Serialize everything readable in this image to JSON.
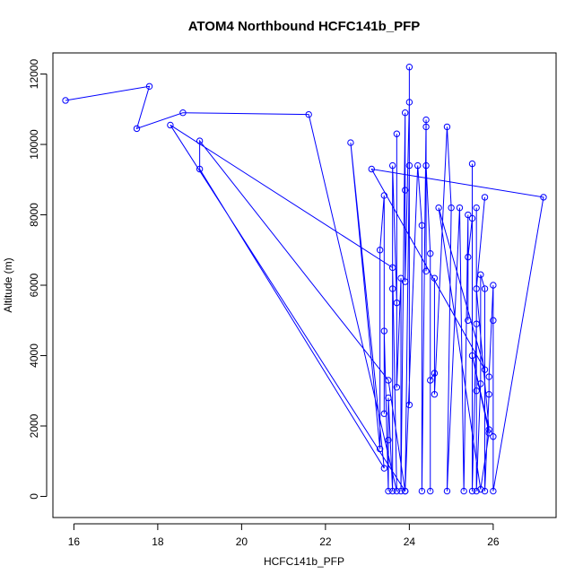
{
  "chart_data": {
    "type": "line",
    "title": "ATOM4 Northbound HCFC141b_PFP",
    "xlabel": "HCFC141b_PFP",
    "ylabel": "Altitude (m)",
    "xlim": [
      15.5,
      27.5
    ],
    "ylim": [
      -600,
      12600
    ],
    "x_ticks": [
      16,
      18,
      20,
      22,
      24,
      26
    ],
    "y_ticks": [
      0,
      2000,
      4000,
      6000,
      8000,
      10000,
      12000
    ],
    "grid": false,
    "marker": "open-circle",
    "series": [
      {
        "color": "#0000ff",
        "points": [
          [
            15.8,
            11250
          ],
          [
            17.8,
            11650
          ],
          [
            17.5,
            10450
          ],
          [
            18.6,
            10900
          ],
          [
            21.6,
            10850
          ],
          [
            23.7,
            150
          ],
          [
            23.6,
            6500
          ],
          [
            18.3,
            10550
          ],
          [
            23.9,
            150
          ],
          [
            23.5,
            3300
          ],
          [
            19.0,
            10100
          ],
          [
            19.0,
            9300
          ],
          [
            23.4,
            800
          ],
          [
            22.6,
            10050
          ],
          [
            23.3,
            1350
          ],
          [
            23.3,
            7000
          ],
          [
            23.4,
            8550
          ],
          [
            23.4,
            2350
          ],
          [
            23.4,
            4700
          ],
          [
            23.5,
            150
          ],
          [
            23.5,
            1600
          ],
          [
            23.5,
            2800
          ],
          [
            23.6,
            150
          ],
          [
            23.6,
            5900
          ],
          [
            23.6,
            9400
          ],
          [
            23.7,
            5500
          ],
          [
            23.7,
            10300
          ],
          [
            23.7,
            3100
          ],
          [
            23.8,
            6200
          ],
          [
            23.8,
            150
          ],
          [
            23.9,
            10900
          ],
          [
            23.9,
            8700
          ],
          [
            23.9,
            6100
          ],
          [
            24.0,
            11200
          ],
          [
            24.0,
            12200
          ],
          [
            24.0,
            2600
          ],
          [
            24.0,
            9400
          ],
          [
            23.9,
            150
          ],
          [
            24.2,
            9400
          ],
          [
            24.3,
            7700
          ],
          [
            24.3,
            150
          ],
          [
            24.4,
            10700
          ],
          [
            24.4,
            6400
          ],
          [
            24.4,
            10500
          ],
          [
            24.4,
            9400
          ],
          [
            24.5,
            6900
          ],
          [
            24.5,
            150
          ],
          [
            24.5,
            3300
          ],
          [
            24.6,
            3500
          ],
          [
            24.6,
            6200
          ],
          [
            24.6,
            2900
          ],
          [
            24.9,
            10500
          ],
          [
            25.0,
            8200
          ],
          [
            24.9,
            150
          ],
          [
            25.2,
            8200
          ],
          [
            25.3,
            150
          ],
          [
            25.4,
            8000
          ],
          [
            25.4,
            5000
          ],
          [
            25.4,
            6800
          ],
          [
            25.5,
            7900
          ],
          [
            25.5,
            9450
          ],
          [
            25.5,
            150
          ],
          [
            25.6,
            4900
          ],
          [
            25.6,
            8200
          ],
          [
            25.6,
            3000
          ],
          [
            25.6,
            150
          ],
          [
            25.7,
            3200
          ],
          [
            25.7,
            6300
          ],
          [
            25.8,
            5900
          ],
          [
            25.8,
            150
          ],
          [
            25.9,
            2900
          ],
          [
            25.9,
            3400
          ],
          [
            26.0,
            6000
          ],
          [
            26.0,
            5000
          ],
          [
            26.0,
            1700
          ],
          [
            26.0,
            150
          ],
          [
            27.2,
            8500
          ],
          [
            23.1,
            9300
          ],
          [
            25.8,
            3600
          ],
          [
            24.7,
            8200
          ],
          [
            25.7,
            200
          ],
          [
            25.9,
            1800
          ],
          [
            25.5,
            4000
          ],
          [
            25.9,
            1900
          ],
          [
            25.6,
            5900
          ],
          [
            25.8,
            8500
          ]
        ]
      }
    ]
  }
}
